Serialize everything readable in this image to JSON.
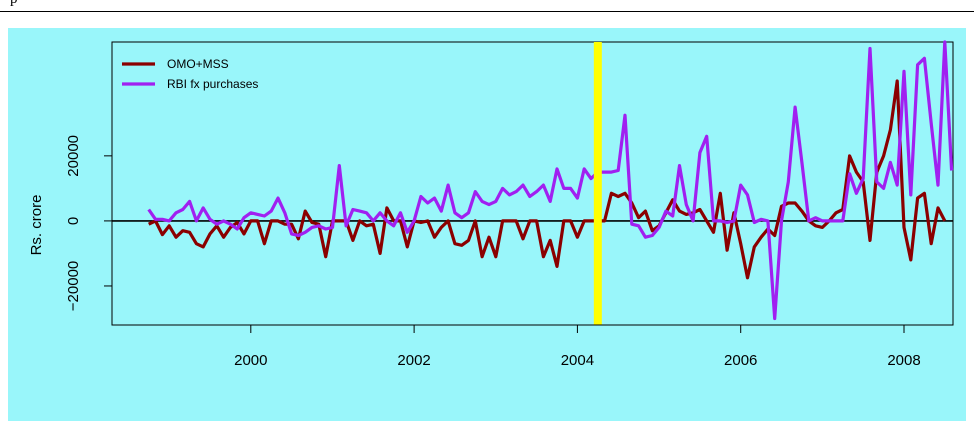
{
  "header": {
    "caption": "p"
  },
  "colors": {
    "panel_bg": "#99F6FA",
    "omo": "#8B0000",
    "rbi": "#A020F0",
    "marker": "#FFFF00"
  },
  "chart_data": {
    "type": "line",
    "title": "",
    "xlabel": "",
    "ylabel": "Rs. crore",
    "xlim": [
      1998.3,
      2008.6
    ],
    "ylim": [
      -32000,
      55000
    ],
    "x_ticks": [
      2000,
      2002,
      2004,
      2006,
      2008
    ],
    "y_ticks": [
      -20000,
      0,
      20000
    ],
    "y_tick_labels": [
      "−20000",
      "0",
      "20000"
    ],
    "hline": 0,
    "vline": {
      "x": 2004.25,
      "color": "#FFFF00"
    },
    "legend_position": "top-left",
    "grid": false,
    "series": [
      {
        "name": "OMO+MSS",
        "color": "#8B0000",
        "x_start": 1998.75,
        "x_step": 0.0833333,
        "values": [
          -1000,
          0,
          -4200,
          -1500,
          -5000,
          -3000,
          -3500,
          -7000,
          -8000,
          -4000,
          -1500,
          -5000,
          -2000,
          -500,
          -4000,
          0,
          0,
          -7000,
          0,
          0,
          -1000,
          -1000,
          -5500,
          3000,
          -500,
          -1000,
          -11000,
          0,
          0,
          0,
          -6000,
          0,
          -1500,
          -1000,
          -10000,
          4000,
          0,
          0,
          -8000,
          0,
          -500,
          0,
          -5000,
          -2000,
          0,
          -7000,
          -7500,
          -6000,
          0,
          -11000,
          -5000,
          -11000,
          0,
          0,
          0,
          -5500,
          0,
          0,
          -11000,
          -6000,
          -14000,
          0,
          0,
          -5000,
          0,
          0,
          0,
          0,
          8500,
          7500,
          8500,
          5500,
          1000,
          3000,
          -3000,
          -1500,
          2500,
          6500,
          3000,
          2000,
          2500,
          3500,
          0,
          -3500,
          8500,
          -9000,
          2500,
          -7000,
          -17500,
          -8000,
          -5000,
          -2500,
          -4500,
          4500,
          5500,
          5500,
          3000,
          0,
          -1500,
          -2000,
          0,
          2500,
          3500,
          20000,
          15000,
          12000,
          -6000,
          15000,
          20000,
          28000,
          43000,
          -2000,
          -12000,
          7000,
          8500,
          -7000,
          4000,
          0
        ]
      },
      {
        "name": "RBI fx purchases",
        "color": "#A020F0",
        "x_start": 1998.75,
        "x_step": 0.0833333,
        "values": [
          3500,
          500,
          500,
          0,
          2500,
          3500,
          6000,
          0,
          4000,
          500,
          -1000,
          0,
          -1000,
          -2500,
          1000,
          2500,
          2000,
          1500,
          3000,
          7000,
          2500,
          -4000,
          -4500,
          -3500,
          -2000,
          -1500,
          -2500,
          -2000,
          17000,
          -1500,
          3500,
          3000,
          2500,
          0,
          2500,
          0,
          -1500,
          2500,
          -3500,
          0,
          7500,
          5500,
          7000,
          3000,
          11000,
          2500,
          1000,
          2500,
          9000,
          6000,
          5000,
          6000,
          10000,
          8000,
          9000,
          11000,
          7500,
          9000,
          11000,
          6000,
          16000,
          10000,
          10000,
          7000,
          16000,
          13000,
          15000,
          15000,
          15000,
          15500,
          32500,
          -1000,
          -1500,
          -5000,
          -4500,
          -2000,
          3000,
          1500,
          17000,
          5000,
          0,
          21000,
          26000,
          0,
          0,
          -500,
          0,
          11000,
          8000,
          -500,
          500,
          0,
          -30000,
          0,
          12000,
          35000,
          18000,
          0,
          1000,
          0,
          0,
          0,
          0,
          14500,
          8500,
          13000,
          53000,
          12000,
          10000,
          18000,
          11000,
          46000,
          8000,
          48000,
          50000,
          30000,
          11000,
          55000,
          15500
        ]
      }
    ]
  }
}
